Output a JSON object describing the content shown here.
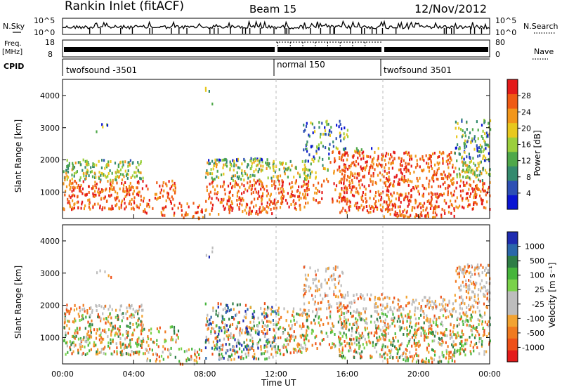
{
  "header": {
    "title": "Rankin Inlet (fitACF)",
    "beam": "Beam 15",
    "date": "12/Nov/2012"
  },
  "left_labels": {
    "nsky": "N.Sky",
    "freq": "Freq.",
    "freq_unit": "[MHz]",
    "cpid": "CPID"
  },
  "right_labels": {
    "nsearch": "N.Search",
    "nave": "Nave"
  },
  "noise_panel": {
    "left_ticks": [
      "10^5",
      "10^0"
    ],
    "right_ticks": [
      "10^5",
      "10^0"
    ]
  },
  "freq_panel": {
    "left_ticks": [
      "18",
      "8"
    ],
    "right_ticks": [
      "80",
      "0"
    ]
  },
  "cpid_segments": [
    {
      "label": "twofsound -3501",
      "start_h": 0,
      "end_h": 12
    },
    {
      "label": "normal 150",
      "start_h": 12,
      "end_h": 18
    },
    {
      "label": "twofsound 3501",
      "start_h": 18,
      "end_h": 24
    }
  ],
  "chart_data": [
    {
      "type": "heatmap",
      "panel": "power",
      "ylabel": "Slant Range [km]",
      "yticks": [
        "1000",
        "2000",
        "3000",
        "4000"
      ],
      "ylim": [
        180,
        4500
      ],
      "xlim_hours": [
        0,
        24
      ],
      "colorbar_label": "Power [dB]",
      "colorbar_ticks": [
        "4",
        "8",
        "12",
        "16",
        "20",
        "24",
        "28"
      ],
      "colorbar_colors": [
        "#0a14d2",
        "#2d4fb4",
        "#348a6e",
        "#4fa84a",
        "#9bcf3c",
        "#e8c81e",
        "#f2961a",
        "#ef5a14",
        "#e41a1a"
      ]
    },
    {
      "type": "heatmap",
      "panel": "velocity",
      "ylabel": "Slant Range [km]",
      "yticks": [
        "1000",
        "2000",
        "3000",
        "4000"
      ],
      "ylim": [
        180,
        4500
      ],
      "xlim_hours": [
        0,
        24
      ],
      "xlabel": "Time UT",
      "xticks": [
        "00:00",
        "04:00",
        "08:00",
        "12:00",
        "16:00",
        "20:00",
        "00:00"
      ],
      "colorbar_label": "Velocity [m s⁻¹]",
      "colorbar_ticks": [
        "1000",
        "500",
        "100",
        "25",
        "-25",
        "-100",
        "-500",
        "-1000"
      ],
      "colorbar_colors": [
        "#1e2bb0",
        "#2b67aa",
        "#2e7d46",
        "#46b53c",
        "#7ad24a",
        "#bdbdbd",
        "#bdbdbd",
        "#f2a332",
        "#f07a20",
        "#ee5018",
        "#e41a1a"
      ]
    }
  ]
}
